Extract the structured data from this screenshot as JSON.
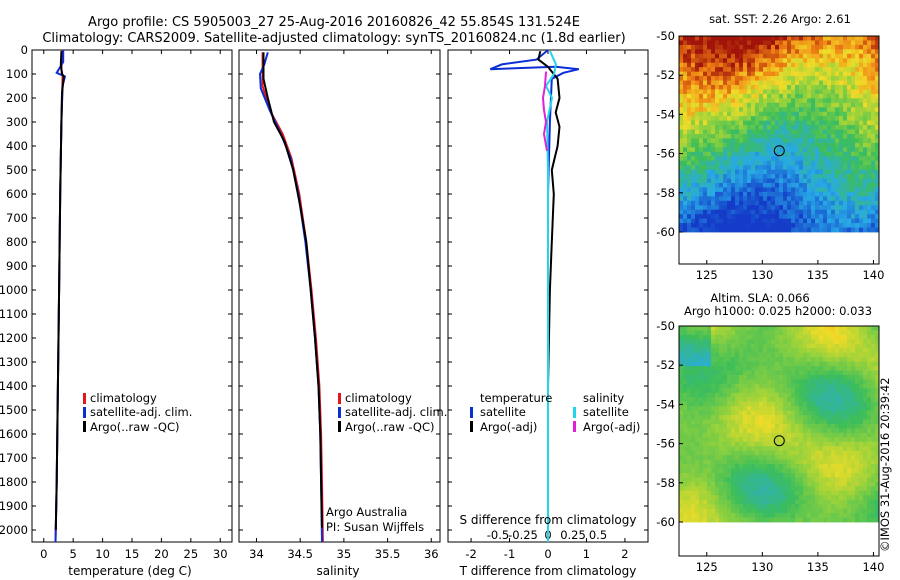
{
  "title": {
    "line1": "Argo profile: CS 5905003_27 25-Aug-2016 20160826_42 55.854S 131.524E",
    "line2": "Climatology: CARS2009. Satellite-adjusted climatology: synTS_20160824.nc (1.8d earlier)"
  },
  "colors": {
    "climatology": "#e8131b",
    "satellite": "#0a2fd6",
    "argo": "#000000",
    "salinity_satellite": "#22d6e8",
    "argo_adj_salinity": "#e020d8"
  },
  "chart_data": [
    {
      "type": "line",
      "name": "temperature-profile",
      "xlabel": "temperature (deg C)",
      "ylabel": "",
      "xlim": [
        -2,
        32
      ],
      "ylim": [
        2050,
        0
      ],
      "xticks": [
        "0",
        "5",
        "10",
        "15",
        "20",
        "25",
        "30"
      ],
      "xtick_values": [
        0,
        5,
        10,
        15,
        20,
        25,
        30
      ],
      "yticks": [
        "0",
        "100",
        "200",
        "300",
        "400",
        "500",
        "600",
        "700",
        "800",
        "900",
        "1000",
        "1100",
        "1200",
        "1300",
        "1400",
        "1500",
        "1600",
        "1700",
        "1800",
        "1900",
        "2000"
      ],
      "ytick_values": [
        0,
        100,
        200,
        300,
        400,
        500,
        600,
        700,
        800,
        900,
        1000,
        1100,
        1200,
        1300,
        1400,
        1500,
        1600,
        1700,
        1800,
        1900,
        2000
      ],
      "legend": [
        "climatology",
        "satellite-adj. clim.",
        "Argo(..raw -QC)"
      ],
      "legend_position": "center-right",
      "series": [
        {
          "name": "climatology",
          "color": "#e8131b",
          "points": [
            [
              3.1,
              0
            ],
            [
              3.0,
              80
            ],
            [
              3.2,
              110
            ],
            [
              3.0,
              300
            ],
            [
              2.8,
              600
            ],
            [
              2.6,
              1000
            ],
            [
              2.4,
              1400
            ],
            [
              2.2,
              1800
            ],
            [
              2.0,
              2050
            ]
          ]
        },
        {
          "name": "satellite-adj. clim.",
          "color": "#0a2fd6",
          "points": [
            [
              3.3,
              0
            ],
            [
              3.3,
              50
            ],
            [
              2.2,
              95
            ],
            [
              3.6,
              110
            ],
            [
              3.2,
              150
            ],
            [
              3.0,
              300
            ],
            [
              2.8,
              600
            ],
            [
              2.6,
              1000
            ],
            [
              2.4,
              1400
            ],
            [
              2.2,
              1800
            ],
            [
              2.0,
              2050
            ]
          ]
        },
        {
          "name": "Argo(..raw -QC)",
          "color": "#000000",
          "points": [
            [
              3.0,
              5
            ],
            [
              2.9,
              60
            ],
            [
              3.1,
              100
            ],
            [
              3.4,
              110
            ],
            [
              3.1,
              180
            ],
            [
              3.0,
              300
            ],
            [
              2.8,
              600
            ],
            [
              2.6,
              1000
            ],
            [
              2.4,
              1400
            ],
            [
              2.2,
              1800
            ],
            [
              2.05,
              2000
            ]
          ]
        }
      ]
    },
    {
      "type": "line",
      "name": "salinity-profile",
      "xlabel": "salinity",
      "xlim": [
        33.8,
        36.1
      ],
      "ylim": [
        2050,
        0
      ],
      "xticks": [
        "34",
        "34.5",
        "35",
        "35.5",
        "36"
      ],
      "xtick_values": [
        34,
        34.5,
        35,
        35.5,
        36
      ],
      "legend": [
        "climatology",
        "satellite-adj. clim.",
        "Argo(..raw -QC)"
      ],
      "legend_position": "center-right",
      "annotation": [
        "Argo Australia",
        "PI: Susan Wijffels"
      ],
      "series": [
        {
          "name": "climatology",
          "color": "#e8131b",
          "points": [
            [
              34.07,
              10
            ],
            [
              34.07,
              150
            ],
            [
              34.15,
              250
            ],
            [
              34.3,
              350
            ],
            [
              34.4,
              450
            ],
            [
              34.49,
              600
            ],
            [
              34.57,
              800
            ],
            [
              34.63,
              1000
            ],
            [
              34.68,
              1200
            ],
            [
              34.72,
              1400
            ],
            [
              34.74,
              1600
            ],
            [
              34.75,
              1800
            ],
            [
              34.76,
              2050
            ]
          ]
        },
        {
          "name": "satellite-adj. clim.",
          "color": "#0a2fd6",
          "points": [
            [
              34.13,
              10
            ],
            [
              34.09,
              60
            ],
            [
              34.04,
              100
            ],
            [
              34.05,
              160
            ],
            [
              34.15,
              250
            ],
            [
              34.28,
              350
            ],
            [
              34.39,
              450
            ],
            [
              34.48,
              600
            ],
            [
              34.56,
              800
            ],
            [
              34.62,
              1000
            ],
            [
              34.67,
              1200
            ],
            [
              34.71,
              1400
            ],
            [
              34.73,
              1600
            ],
            [
              34.74,
              1800
            ],
            [
              34.75,
              2050
            ]
          ]
        },
        {
          "name": "Argo(..raw -QC)",
          "color": "#000000",
          "points": [
            [
              34.08,
              10
            ],
            [
              34.08,
              120
            ],
            [
              34.13,
              200
            ],
            [
              34.2,
              300
            ],
            [
              34.32,
              380
            ],
            [
              34.42,
              500
            ],
            [
              34.5,
              650
            ],
            [
              34.57,
              800
            ],
            [
              34.62,
              1000
            ],
            [
              34.67,
              1200
            ],
            [
              34.71,
              1400
            ],
            [
              34.73,
              1600
            ],
            [
              34.74,
              1800
            ],
            [
              34.75,
              1990
            ]
          ]
        }
      ]
    },
    {
      "type": "line",
      "name": "difference-profile",
      "xlabel": "T difference from climatology",
      "xlabel_top": "S difference from climatology",
      "xlim": [
        -2.6,
        2.6
      ],
      "ylim": [
        2050,
        0
      ],
      "xticks": [
        "-2",
        "-1",
        "0",
        "1",
        "2"
      ],
      "xtick_values": [
        -2,
        -1,
        0,
        1,
        2
      ],
      "xticks_top": [
        "-0.5",
        "-0.25",
        "0",
        "0.25",
        "0.5"
      ],
      "xtick_top_values": [
        -0.5,
        -0.25,
        0,
        0.25,
        0.5
      ],
      "legend_temperature": {
        "title": "temperature",
        "entries": [
          "satellite",
          "Argo(-adj)"
        ]
      },
      "legend_salinity": {
        "title": "salinity",
        "entries": [
          "satellite",
          "Argo(-adj)"
        ]
      },
      "series": [
        {
          "name": "temperature satellite",
          "color": "#0a2fd6",
          "points": [
            [
              0.0,
              0
            ],
            [
              -0.3,
              40
            ],
            [
              -1.2,
              60
            ],
            [
              -1.5,
              80
            ],
            [
              0.2,
              70
            ],
            [
              0.8,
              80
            ],
            [
              0.4,
              95
            ],
            [
              0.1,
              120
            ],
            [
              0.05,
              300
            ],
            [
              0.0,
              600
            ],
            [
              0.0,
              1000
            ],
            [
              0.0,
              1500
            ],
            [
              0.0,
              2050
            ]
          ]
        },
        {
          "name": "temperature Argo(-adj)",
          "color": "#000000",
          "points": [
            [
              -0.2,
              5
            ],
            [
              -0.25,
              40
            ],
            [
              0.0,
              70
            ],
            [
              0.1,
              90
            ],
            [
              0.25,
              120
            ],
            [
              0.3,
              200
            ],
            [
              0.2,
              260
            ],
            [
              0.3,
              320
            ],
            [
              0.25,
              400
            ],
            [
              0.1,
              500
            ],
            [
              0.15,
              600
            ],
            [
              0.1,
              800
            ],
            [
              0.05,
              1000
            ],
            [
              0.0,
              1400
            ],
            [
              0.0,
              1800
            ],
            [
              0.0,
              2000
            ]
          ]
        },
        {
          "name": "salinity satellite",
          "color": "#22d6e8",
          "points": [
            [
              0.02,
              5
            ],
            [
              0.08,
              60
            ],
            [
              0.06,
              100
            ],
            [
              -0.02,
              150
            ],
            [
              0.04,
              200
            ],
            [
              -0.01,
              300
            ],
            [
              0.0,
              500
            ],
            [
              0.0,
              800
            ],
            [
              0.0,
              1200
            ],
            [
              0.0,
              1600
            ],
            [
              0.0,
              2050
            ]
          ]
        },
        {
          "name": "salinity Argo(-adj)",
          "color": "#e020d8",
          "points": [
            [
              -0.02,
              90
            ],
            [
              -0.03,
              150
            ],
            [
              -0.05,
              200
            ],
            [
              -0.04,
              250
            ],
            [
              -0.02,
              300
            ],
            [
              -0.04,
              350
            ],
            [
              -0.01,
              420
            ]
          ]
        }
      ]
    },
    {
      "type": "heatmap",
      "name": "sst-map",
      "title": "sat. SST: 2.26 Argo: 2.61",
      "xlim": [
        122.5,
        140.5
      ],
      "ylim": [
        -60,
        -50
      ],
      "xticks": [
        "125",
        "130",
        "135",
        "140"
      ],
      "xtick_values": [
        125,
        130,
        135,
        140
      ],
      "yticks": [
        "-50",
        "-52",
        "-54",
        "-56",
        "-58",
        "-60"
      ],
      "ytick_values": [
        -50,
        -52,
        -54,
        -56,
        -58,
        -60
      ],
      "marker": {
        "lon": 131.524,
        "lat": -55.854
      }
    },
    {
      "type": "heatmap",
      "name": "sla-map",
      "title": "Altim. SLA: 0.066",
      "subtitle": "Argo h1000: 0.025 h2000: 0.033",
      "xlim": [
        122.5,
        140.5
      ],
      "ylim": [
        -60,
        -50
      ],
      "xticks": [
        "125",
        "130",
        "135",
        "140"
      ],
      "xtick_values": [
        125,
        130,
        135,
        140
      ],
      "yticks": [
        "-50",
        "-52",
        "-54",
        "-56",
        "-58",
        "-60"
      ],
      "ytick_values": [
        -50,
        -52,
        -54,
        -56,
        -58,
        -60
      ],
      "marker": {
        "lon": 131.524,
        "lat": -55.854
      }
    }
  ],
  "footer": {
    "stamp": "©IMOS 31-Aug-2016 20:39:42"
  }
}
